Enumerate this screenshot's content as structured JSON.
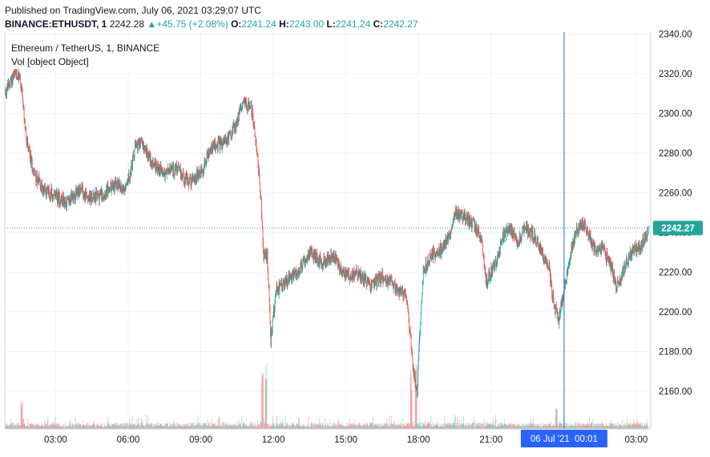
{
  "header": {
    "published": "Published on TradingView.com, July 06, 2021 03:29:07 UTC",
    "symbol_line": "BINANCE:ETHUSDT, 1",
    "last": "2242.28",
    "change": "+45.75 (+2.08%)",
    "o_label": "O:",
    "o_value": "2241.24",
    "h_label": "H:",
    "h_value": "2243.00",
    "l_label": "L:",
    "l_value": "2241.24",
    "c_label": "C:",
    "c_value": "2242.27"
  },
  "legend": {
    "title": "Ethereum / TetherUS, 1, BINANCE",
    "volume": "Vol [object Object]"
  },
  "price_tag": "2242.27",
  "crosshair_label": "06 Jul '21  00:01",
  "colors": {
    "up": "#26a69a",
    "down": "#ef5350",
    "crosshair": "#2962ff",
    "price_line": "#26a69a",
    "grid": "#f0f3fa"
  },
  "chart_data": {
    "type": "candlestick",
    "symbol": "ETHUSDT",
    "interval": "1",
    "y_ticks": [
      2160,
      2180,
      2200,
      2220,
      2240,
      2260,
      2280,
      2300,
      2320,
      2340
    ],
    "y_tick_labels": [
      "2160.00",
      "2180.00",
      "2200.00",
      "2220.00",
      "2240.00",
      "2260.00",
      "2280.00",
      "2300.00",
      "2320.00",
      "2340.00"
    ],
    "ylim": [
      2141,
      2341
    ],
    "x_tick_labels": [
      "03:00",
      "06:00",
      "09:00",
      "12:00",
      "15:00",
      "18:00",
      "21:00",
      "03:00"
    ],
    "x_tick_hours": [
      3,
      6,
      9,
      12,
      15,
      18,
      21,
      27
    ],
    "x_range_hours": [
      0.9,
      27.6
    ],
    "crosshair_hour": 24.02,
    "last_price": 2242.27,
    "price_path": [
      [
        0.9,
        2310
      ],
      [
        1.2,
        2318
      ],
      [
        1.5,
        2320
      ],
      [
        1.65,
        2305
      ],
      [
        1.8,
        2285
      ],
      [
        2.1,
        2270
      ],
      [
        2.5,
        2262
      ],
      [
        3.0,
        2258
      ],
      [
        3.5,
        2255
      ],
      [
        4.0,
        2262
      ],
      [
        4.5,
        2257
      ],
      [
        5.0,
        2260
      ],
      [
        5.5,
        2264
      ],
      [
        5.8,
        2262
      ],
      [
        6.1,
        2270
      ],
      [
        6.3,
        2283
      ],
      [
        6.6,
        2285
      ],
      [
        7.0,
        2275
      ],
      [
        7.5,
        2270
      ],
      [
        8.0,
        2272
      ],
      [
        8.5,
        2265
      ],
      [
        9.0,
        2270
      ],
      [
        9.5,
        2283
      ],
      [
        10.0,
        2285
      ],
      [
        10.4,
        2293
      ],
      [
        10.8,
        2306
      ],
      [
        11.1,
        2302
      ],
      [
        11.3,
        2285
      ],
      [
        11.5,
        2255
      ],
      [
        11.6,
        2228
      ],
      [
        11.75,
        2228
      ],
      [
        11.9,
        2185
      ],
      [
        12.1,
        2210
      ],
      [
        12.5,
        2215
      ],
      [
        13.0,
        2220
      ],
      [
        13.5,
        2230
      ],
      [
        14.0,
        2225
      ],
      [
        14.5,
        2228
      ],
      [
        15.0,
        2218
      ],
      [
        15.5,
        2220
      ],
      [
        16.0,
        2213
      ],
      [
        16.5,
        2218
      ],
      [
        17.0,
        2213
      ],
      [
        17.5,
        2208
      ],
      [
        17.8,
        2170
      ],
      [
        17.95,
        2160
      ],
      [
        18.05,
        2188
      ],
      [
        18.2,
        2220
      ],
      [
        18.5,
        2228
      ],
      [
        19.0,
        2232
      ],
      [
        19.3,
        2240
      ],
      [
        19.5,
        2250
      ],
      [
        19.8,
        2248
      ],
      [
        20.2,
        2245
      ],
      [
        20.6,
        2238
      ],
      [
        20.8,
        2215
      ],
      [
        21.2,
        2225
      ],
      [
        21.5,
        2238
      ],
      [
        21.8,
        2242
      ],
      [
        22.1,
        2235
      ],
      [
        22.4,
        2243
      ],
      [
        22.8,
        2238
      ],
      [
        23.1,
        2230
      ],
      [
        23.4,
        2222
      ],
      [
        23.6,
        2203
      ],
      [
        23.8,
        2196
      ],
      [
        24.0,
        2210
      ],
      [
        24.2,
        2225
      ],
      [
        24.5,
        2240
      ],
      [
        24.8,
        2245
      ],
      [
        25.0,
        2240
      ],
      [
        25.3,
        2230
      ],
      [
        25.6,
        2232
      ],
      [
        26.0,
        2222
      ],
      [
        26.2,
        2212
      ],
      [
        26.5,
        2222
      ],
      [
        26.8,
        2230
      ],
      [
        27.1,
        2232
      ],
      [
        27.3,
        2236
      ],
      [
        27.5,
        2242
      ]
    ],
    "volume_spikes": [
      [
        1.6,
        0.45
      ],
      [
        11.55,
        0.8
      ],
      [
        11.7,
        0.95
      ],
      [
        17.7,
        0.85
      ],
      [
        17.9,
        0.9
      ],
      [
        23.7,
        0.3
      ]
    ]
  }
}
